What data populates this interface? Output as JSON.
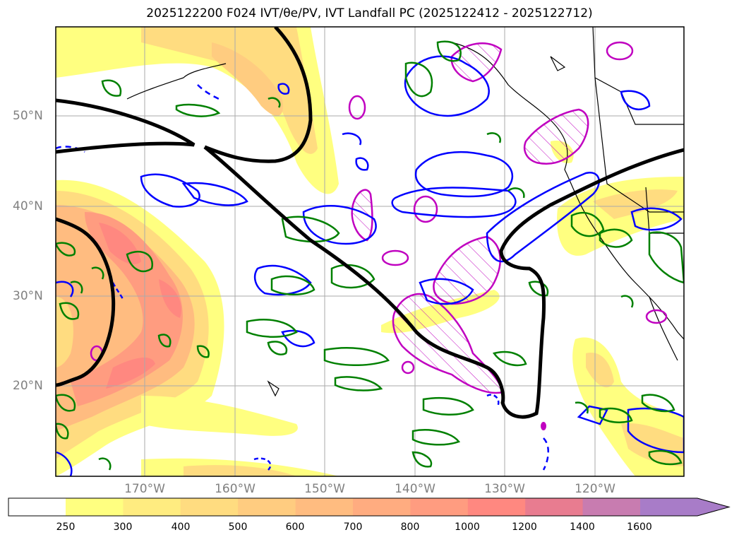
{
  "title": "2025122200 F024 IVT/θe/PV, IVT Landfall PC (2025122412 - 2025122712)",
  "lat_labels": [
    "50°N",
    "40°N",
    "30°N",
    "20°N"
  ],
  "lon_labels": [
    "170°W",
    "160°W",
    "150°W",
    "140°W",
    "130°W",
    "120°W"
  ],
  "colorbar": {
    "labels": [
      "250",
      "300",
      "400",
      "500",
      "600",
      "700",
      "800",
      "1000",
      "1200",
      "1400",
      "1600"
    ],
    "colors": [
      "#ffff80",
      "#ffec80",
      "#ffdc80",
      "#ffcc80",
      "#ffbc80",
      "#ffac80",
      "#ff9c80",
      "#ff8880",
      "#e87c90",
      "#c87cb0",
      "#a87cc8"
    ]
  },
  "colors": {
    "theta_e_contour": "#008000",
    "pv_contour": "#0000ff",
    "landfall_pc_contour": "#c000c0",
    "ivt_contour_black": "#000000",
    "grid": "#aaaaaa",
    "axis_labels": "#808080"
  }
}
